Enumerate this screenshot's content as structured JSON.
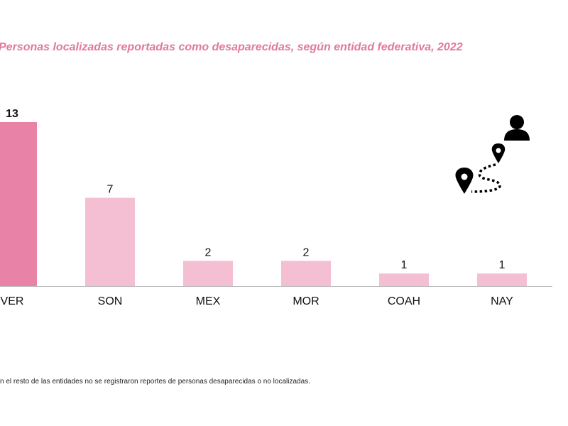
{
  "title": "Personas localizadas reportadas como desaparecidas, según entidad federativa, 2022",
  "footnote": "n el resto de las entidades no se registraron reportes de personas desaparecidas o no localizadas.",
  "colors": {
    "title": "#e0799f",
    "highlight_bar": "#e882a6",
    "bar": "#f4bfd2",
    "axis": "#bdbdbd",
    "label": "#111111",
    "icon": "#000000"
  },
  "icons": [
    "user-icon",
    "location-route-icon"
  ],
  "chart_data": {
    "type": "bar",
    "title": "Personas localizadas reportadas como desaparecidas, según entidad federativa, 2022",
    "categories": [
      "VER",
      "SON",
      "MEX",
      "MOR",
      "COAH",
      "NAY"
    ],
    "values": [
      13,
      7,
      2,
      2,
      1,
      1
    ],
    "highlight_index": 0,
    "ylim": [
      0,
      13
    ],
    "grid": false,
    "data_labels": true,
    "xlabel": "",
    "ylabel": ""
  }
}
